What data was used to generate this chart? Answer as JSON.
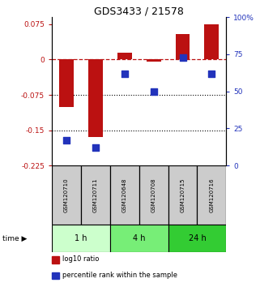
{
  "title": "GDS3433 / 21578",
  "samples": [
    "GSM120710",
    "GSM120711",
    "GSM120648",
    "GSM120708",
    "GSM120715",
    "GSM120716"
  ],
  "log10_ratio": [
    -0.1,
    -0.165,
    0.015,
    -0.005,
    0.055,
    0.075
  ],
  "percentile_rank": [
    17,
    12,
    62,
    50,
    73,
    62
  ],
  "ylim_left": [
    -0.225,
    0.09
  ],
  "ylim_right": [
    0,
    100
  ],
  "yticks_left": [
    0.075,
    0,
    -0.075,
    -0.15,
    -0.225
  ],
  "yticks_right": [
    100,
    75,
    50,
    25,
    0
  ],
  "hlines": [
    -0.075,
    -0.15
  ],
  "bar_color": "#bb1111",
  "scatter_color": "#2233bb",
  "time_groups": [
    {
      "label": "1 h",
      "samples": [
        0,
        1
      ],
      "color": "#ccffcc"
    },
    {
      "label": "4 h",
      "samples": [
        2,
        3
      ],
      "color": "#77ee77"
    },
    {
      "label": "24 h",
      "samples": [
        4,
        5
      ],
      "color": "#33cc33"
    }
  ],
  "bar_width": 0.5,
  "scatter_size": 28,
  "legend_labels": [
    "log10 ratio",
    "percentile rank within the sample"
  ],
  "legend_colors": [
    "#bb1111",
    "#2233bb"
  ],
  "sample_box_color": "#cccccc",
  "bg_color": "white"
}
